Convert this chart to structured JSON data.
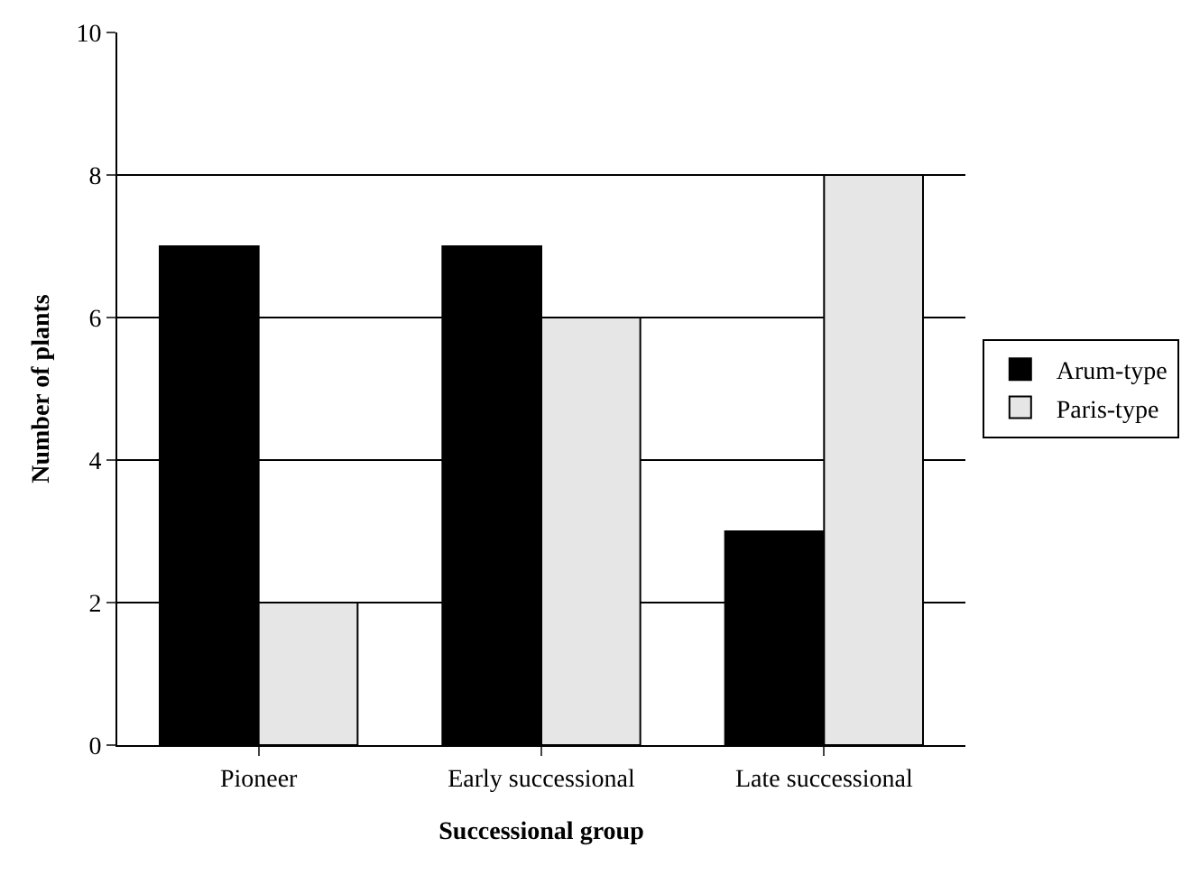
{
  "chart_data": {
    "type": "bar",
    "xlabel": "Successional group",
    "ylabel": "Number of plants",
    "categories": [
      "Pioneer",
      "Early successional",
      "Late successional"
    ],
    "series": [
      {
        "name": "Arum-type",
        "color": "#000000",
        "values": [
          7,
          7,
          3
        ]
      },
      {
        "name": "Paris-type",
        "color": "#e6e6e6",
        "values": [
          2,
          6,
          8
        ]
      }
    ],
    "ylim": [
      0,
      10
    ],
    "yticks": [
      0,
      2,
      4,
      6,
      8,
      10
    ],
    "grid": "y",
    "legend": "right"
  }
}
